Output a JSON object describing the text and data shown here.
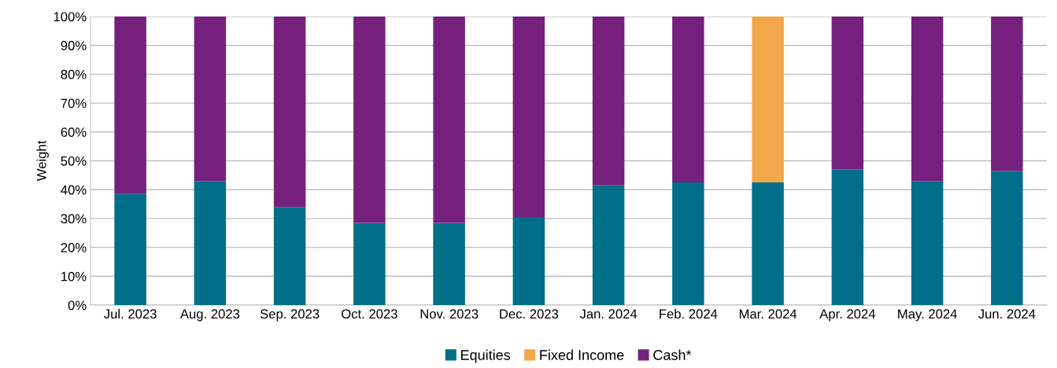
{
  "chart_data": {
    "type": "bar",
    "stacked": true,
    "ylabel": "Weight",
    "categories": [
      "Jul. 2023",
      "Aug. 2023",
      "Sep. 2023",
      "Oct. 2023",
      "Nov. 2023",
      "Dec. 2023",
      "Jan. 2024",
      "Feb. 2024",
      "Mar. 2024",
      "Apr. 2024",
      "May. 2024",
      "Jun. 2024"
    ],
    "series": [
      {
        "name": "Equities",
        "color": "#006e89",
        "values": [
          38.5,
          43,
          34,
          28.5,
          28.5,
          30.5,
          41.5,
          42.5,
          42.5,
          47,
          43,
          46.5
        ]
      },
      {
        "name": "Fixed Income",
        "color": "#f2a74a",
        "values": [
          0,
          0,
          0,
          0,
          0,
          0,
          0,
          0,
          57.5,
          0,
          0,
          0
        ]
      },
      {
        "name": "Cash*",
        "color": "#76207d",
        "values": [
          61.5,
          57,
          66,
          71.5,
          71.5,
          69.5,
          58.5,
          57.5,
          0,
          53,
          57,
          53.5
        ]
      }
    ],
    "ylim": [
      0,
      100
    ],
    "yticks": [
      {
        "value": 0,
        "label": "0%"
      },
      {
        "value": 10,
        "label": "10%"
      },
      {
        "value": 20,
        "label": "20%"
      },
      {
        "value": 30,
        "label": "30%"
      },
      {
        "value": 40,
        "label": "40%"
      },
      {
        "value": 50,
        "label": "50%"
      },
      {
        "value": 60,
        "label": "60%"
      },
      {
        "value": 70,
        "label": "70%"
      },
      {
        "value": 80,
        "label": "80%"
      },
      {
        "value": 90,
        "label": "90%"
      },
      {
        "value": 100,
        "label": "100%"
      }
    ],
    "grid": "y",
    "legend": "bottom"
  }
}
